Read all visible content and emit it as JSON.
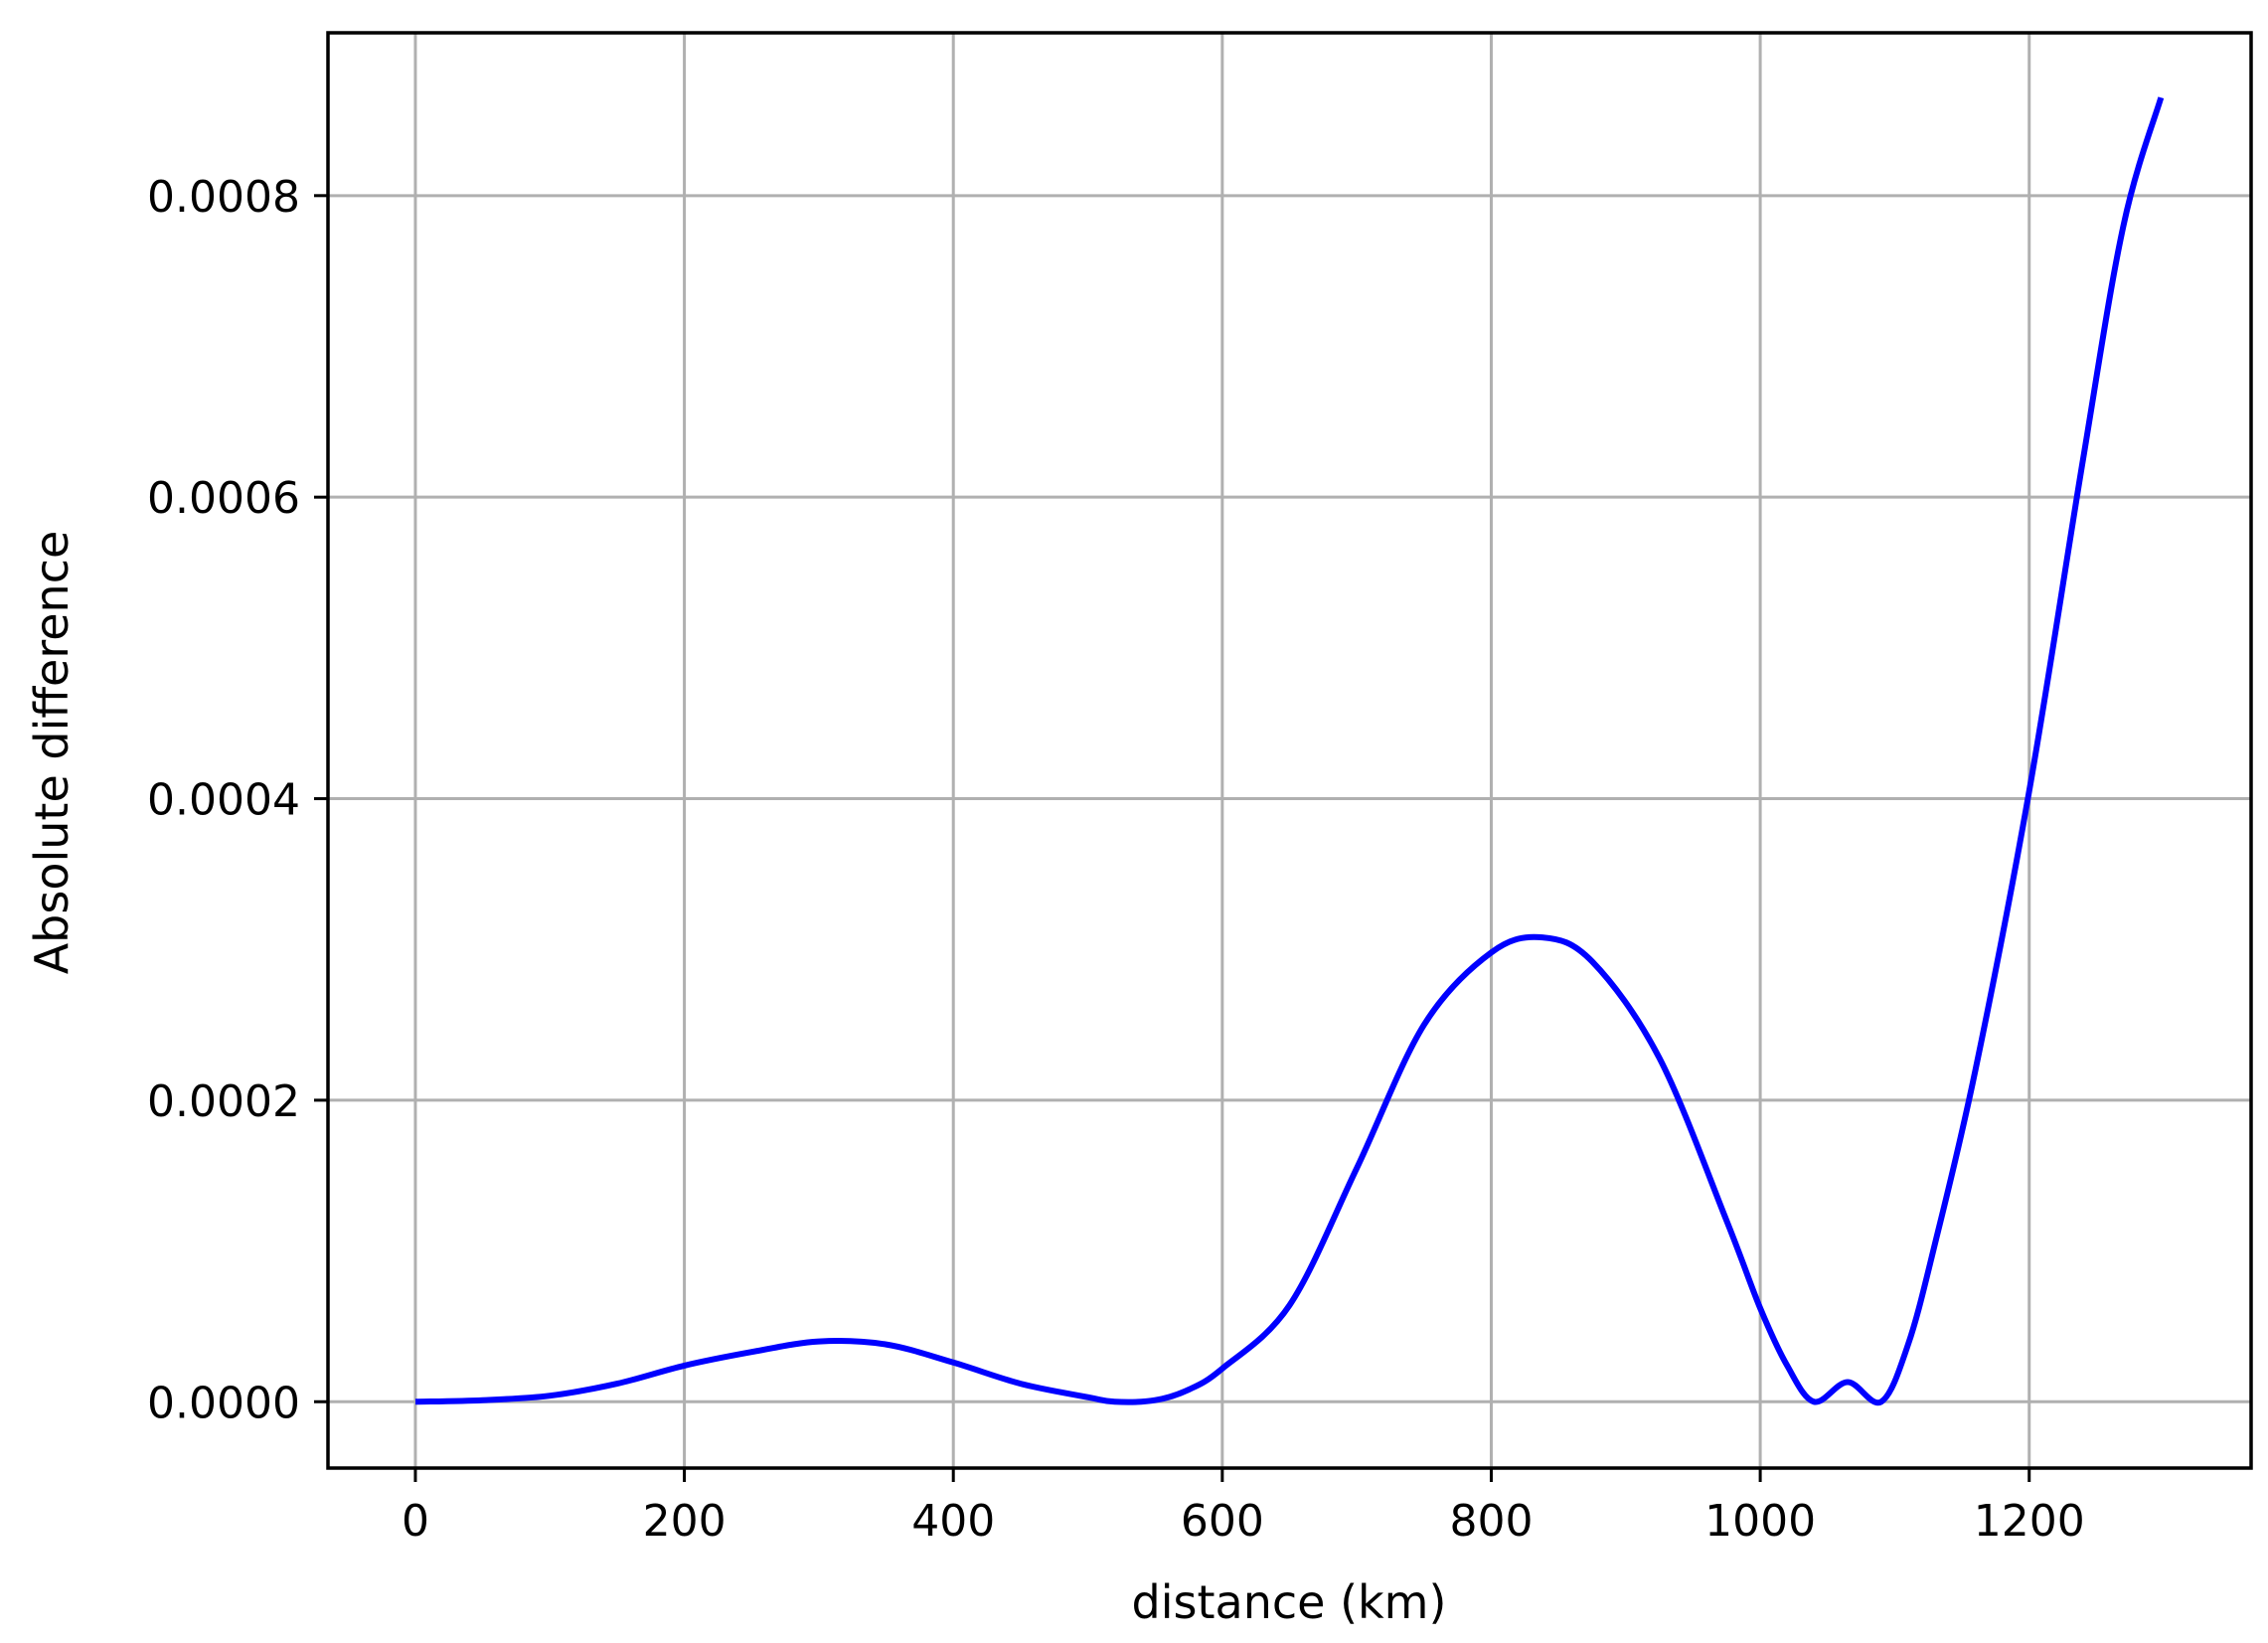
{
  "chart_data": {
    "type": "line",
    "xlabel": "distance (km)",
    "ylabel": "Absolute difference",
    "xlim": [
      -65,
      1365
    ],
    "ylim": [
      -4.4e-05,
      0.000908
    ],
    "xticks": [
      0,
      200,
      400,
      600,
      800,
      1000,
      1200
    ],
    "xtick_labels": [
      "0",
      "200",
      "400",
      "600",
      "800",
      "1000",
      "1200"
    ],
    "yticks": [
      0,
      0.0002,
      0.0004,
      0.0006,
      0.0008
    ],
    "ytick_labels": [
      "0.0000",
      "0.0002",
      "0.0004",
      "0.0006",
      "0.0008"
    ],
    "grid": true,
    "series": [
      {
        "color": "#0000ff",
        "x": [
          0,
          50,
          100,
          150,
          200,
          250,
          300,
          350,
          400,
          450,
          500,
          520,
          550,
          575,
          600,
          650,
          700,
          750,
          800,
          838,
          875,
          925,
          975,
          1000,
          1020,
          1040,
          1065,
          1090,
          1110,
          1130,
          1160,
          1200,
          1240,
          1270,
          1298
        ],
        "y": [
          0,
          1e-06,
          4e-06,
          1.2e-05,
          2.4e-05,
          3.3e-05,
          4e-05,
          3.8e-05,
          2.6e-05,
          1.2e-05,
          3e-06,
          0,
          1e-06,
          8e-06,
          2.2e-05,
          6.4e-05,
          0.000155,
          0.00025,
          0.000298,
          0.000308,
          0.000292,
          0.000228,
          0.00012,
          6.2e-05,
          2.4e-05,
          0,
          1.3e-05,
          0,
          3.8e-05,
          0.000105,
          0.00022,
          0.000405,
          0.000625,
          0.00078,
          0.000865
        ]
      }
    ]
  }
}
